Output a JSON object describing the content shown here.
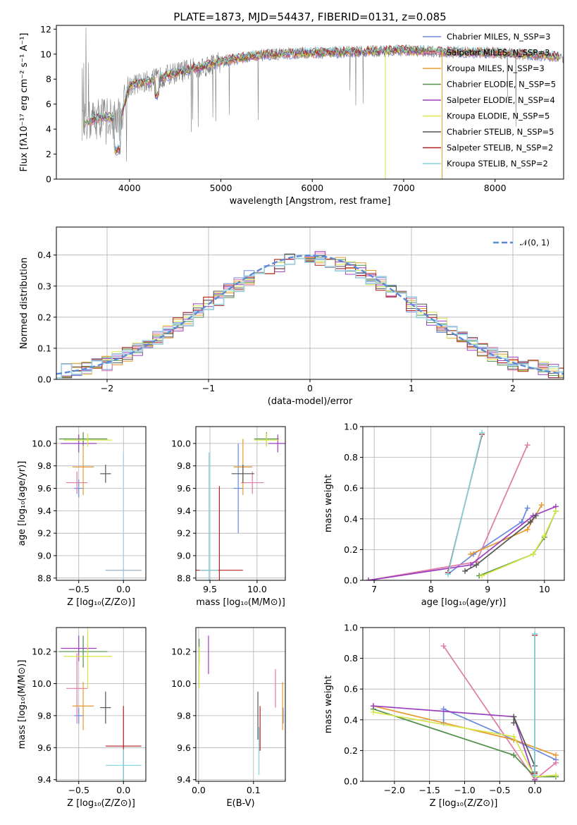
{
  "chart_data": [
    {
      "type": "line",
      "title": "PLATE=1873, MJD=54437, FIBERID=0131, z=0.085",
      "xlabel": "wavelength [Angstrom, rest frame]",
      "ylabel": "Flux [fλ10⁻¹⁷ erg cm⁻² s⁻¹ A⁻¹]",
      "xlim": [
        3200,
        8750
      ],
      "ylim": [
        0,
        12.3
      ],
      "xticks": [
        4000,
        5000,
        6000,
        7000,
        8000
      ],
      "yticks": [
        0,
        2,
        4,
        6,
        8,
        10,
        12
      ],
      "grid": false,
      "legend": "right",
      "spectrum_shape": {
        "x": [
          3500,
          3700,
          3900,
          4000,
          4200,
          4500,
          4800,
          5000,
          5300,
          5600,
          6000,
          6500,
          7000,
          7400,
          8000,
          8500,
          8700
        ],
        "y": [
          4.5,
          5.0,
          4.8,
          7.5,
          7.8,
          8.5,
          9.0,
          9.4,
          9.8,
          10.0,
          10.1,
          10.2,
          10.3,
          10.2,
          10.1,
          9.9,
          9.8
        ]
      },
      "series": [
        {
          "name": "Chabrier MILES, N_SSP=3",
          "color": "#6a88e0"
        },
        {
          "name": "Salpeter MILES, N_SSP=3",
          "color": "#e07aa8"
        },
        {
          "name": "Kroupa MILES, N_SSP=3",
          "color": "#e69a2e"
        },
        {
          "name": "Chabrier ELODIE, N_SSP=5",
          "color": "#4f8f47"
        },
        {
          "name": "Salpeter ELODIE, N_SSP=4",
          "color": "#9c3fbf"
        },
        {
          "name": "Kroupa ELODIE, N_SSP=5",
          "color": "#d8e64a"
        },
        {
          "name": "Chabrier STELIB, N_SSP=5",
          "color": "#555555"
        },
        {
          "name": "Salpeter STELIB, N_SSP=2",
          "color": "#b22222"
        },
        {
          "name": "Kroupa STELIB, N_SSP=2",
          "color": "#7fd6e0"
        }
      ]
    },
    {
      "type": "bar",
      "title": "",
      "xlabel": "(data-model)/error",
      "ylabel": "Normed distribution",
      "xlim": [
        -2.5,
        2.5
      ],
      "ylim": [
        0,
        0.49
      ],
      "xticks": [
        -2,
        -1,
        0,
        1,
        2
      ],
      "yticks": [
        0.0,
        0.1,
        0.2,
        0.3,
        0.4
      ],
      "grid": true,
      "legend": "top-right",
      "reference": {
        "name": "𝒩(0, 1)",
        "color": "#5b8bd6"
      },
      "histogram_envelope": {
        "x": [
          -2.5,
          -2.0,
          -1.5,
          -1.0,
          -0.5,
          0.0,
          0.5,
          1.0,
          1.5,
          2.0,
          2.5
        ],
        "y": [
          0.02,
          0.05,
          0.13,
          0.24,
          0.35,
          0.4,
          0.35,
          0.24,
          0.13,
          0.05,
          0.02
        ]
      }
    },
    {
      "type": "scatter",
      "xlabel": "Z [log₁₀(Z/Z⊙)]",
      "ylabel": "age  [log₁₀(age/yr)]",
      "xlim": [
        -0.75,
        0.25
      ],
      "ylim": [
        8.78,
        10.15
      ],
      "xticks": [
        -0.5,
        0.0
      ],
      "yticks": [
        8.8,
        9.0,
        9.2,
        9.4,
        9.6,
        9.8,
        10.0
      ],
      "grid": true,
      "points": [
        {
          "x": -0.5,
          "y": 9.6,
          "ex": 0.05,
          "ey": 0.08,
          "color": "#6a88e0"
        },
        {
          "x": -0.52,
          "y": 9.65,
          "ex": 0.12,
          "ey": 0.1,
          "color": "#e07aa8"
        },
        {
          "x": -0.45,
          "y": 9.79,
          "ex": 0.12,
          "ey": 0.25,
          "color": "#e69a2e"
        },
        {
          "x": -0.45,
          "y": 10.04,
          "ex": 0.27,
          "ey": 0.06,
          "color": "#4f8f47"
        },
        {
          "x": -0.5,
          "y": 10.0,
          "ex": 0.2,
          "ey": 0.08,
          "color": "#9c3fbf"
        },
        {
          "x": -0.4,
          "y": 10.03,
          "ex": 0.27,
          "ey": 0.06,
          "color": "#d8e64a"
        },
        {
          "x": -0.2,
          "y": 9.73,
          "ex": 0.06,
          "ey": 0.08,
          "color": "#555555"
        },
        {
          "x": 0.0,
          "y": 8.87,
          "ex": 0.2,
          "ey": 0.01,
          "color": "#b22222"
        },
        {
          "x": 0.0,
          "y": 8.87,
          "ex": 0.2,
          "ey": 1.05,
          "color": "#9fcfe0"
        }
      ]
    },
    {
      "type": "scatter",
      "xlabel": "mass [log₁₀(M/M⊙)]",
      "ylabel": "",
      "xlim": [
        9.35,
        10.3
      ],
      "ylim": [
        8.78,
        10.15
      ],
      "xticks": [
        9.5,
        10.0
      ],
      "yticks": [
        8.8,
        9.0,
        9.2,
        9.4,
        9.6,
        9.8,
        10.0
      ],
      "grid": true,
      "points": [
        {
          "x": 9.8,
          "y": 9.6,
          "ex": 0.05,
          "ey": 0.4,
          "color": "#6a88e0"
        },
        {
          "x": 9.95,
          "y": 9.65,
          "ex": 0.12,
          "ey": 0.1,
          "color": "#e07aa8"
        },
        {
          "x": 9.85,
          "y": 9.79,
          "ex": 0.1,
          "ey": 0.25,
          "color": "#e69a2e"
        },
        {
          "x": 10.1,
          "y": 10.04,
          "ex": 0.13,
          "ey": 0.06,
          "color": "#4f8f47"
        },
        {
          "x": 10.22,
          "y": 10.0,
          "ex": 0.1,
          "ey": 0.08,
          "color": "#9c3fbf"
        },
        {
          "x": 10.1,
          "y": 10.03,
          "ex": 0.13,
          "ey": 0.06,
          "color": "#d8e64a"
        },
        {
          "x": 9.85,
          "y": 9.73,
          "ex": 0.12,
          "ey": 0.08,
          "color": "#555555"
        },
        {
          "x": 9.6,
          "y": 8.87,
          "ex": 0.25,
          "ey": 0.75,
          "color": "#b22222"
        },
        {
          "x": 9.49,
          "y": 8.87,
          "ex": 0.1,
          "ey": 1.05,
          "color": "#7fd6e0"
        }
      ]
    },
    {
      "type": "line",
      "xlabel": "age  [log₁₀(age/yr)]",
      "ylabel": "mass weight",
      "xlim": [
        6.8,
        10.35
      ],
      "ylim": [
        0,
        1.0
      ],
      "xticks": [
        7,
        8,
        9,
        10
      ],
      "yticks": [
        0.0,
        0.2,
        0.4,
        0.6,
        0.8,
        1.0
      ],
      "grid": true,
      "series": [
        {
          "color": "#6a88e0",
          "x": [
            8.3,
            8.75,
            9.6,
            9.7
          ],
          "y": [
            0.04,
            0.17,
            0.38,
            0.47
          ]
        },
        {
          "color": "#e07aa8",
          "x": [
            6.9,
            8.8,
            9.7
          ],
          "y": [
            0.0,
            0.12,
            0.88
          ]
        },
        {
          "color": "#e69a2e",
          "x": [
            8.7,
            9.7,
            9.95
          ],
          "y": [
            0.17,
            0.33,
            0.49
          ]
        },
        {
          "color": "#4f8f47",
          "x": [
            8.85,
            9.8,
            10.0,
            10.2
          ],
          "y": [
            0.03,
            0.17,
            0.28,
            0.45
          ]
        },
        {
          "color": "#9c3fbf",
          "x": [
            6.9,
            8.7,
            9.8,
            10.2
          ],
          "y": [
            0.0,
            0.1,
            0.42,
            0.48
          ]
        },
        {
          "color": "#d8e64a",
          "x": [
            8.9,
            9.8,
            10.0,
            10.2
          ],
          "y": [
            0.03,
            0.17,
            0.29,
            0.45
          ]
        },
        {
          "color": "#555555",
          "x": [
            8.6,
            8.8,
            9.75,
            9.85
          ],
          "y": [
            0.06,
            0.1,
            0.38,
            0.42
          ]
        },
        {
          "color": "#b22222",
          "x": [
            8.3,
            8.9
          ],
          "y": [
            0.05,
            0.95
          ]
        },
        {
          "color": "#7fd6e0",
          "x": [
            8.3,
            8.9
          ],
          "y": [
            0.04,
            0.96
          ]
        }
      ]
    },
    {
      "type": "scatter",
      "xlabel": "Z [log₁₀(Z/Z⊙)]",
      "ylabel": "mass [log₁₀(M/M⊙)]",
      "xlim": [
        -0.75,
        0.25
      ],
      "ylim": [
        9.39,
        10.35
      ],
      "xticks": [
        -0.5,
        0.0
      ],
      "yticks": [
        9.4,
        9.6,
        9.8,
        10.0,
        10.2
      ],
      "grid": true,
      "points": [
        {
          "x": -0.5,
          "y": 9.8,
          "ex": 0.05,
          "ey": 0.05,
          "color": "#6a88e0"
        },
        {
          "x": -0.52,
          "y": 9.97,
          "ex": 0.12,
          "ey": 0.22,
          "color": "#e07aa8"
        },
        {
          "x": -0.45,
          "y": 9.86,
          "ex": 0.12,
          "ey": 0.15,
          "color": "#e69a2e"
        },
        {
          "x": -0.45,
          "y": 10.2,
          "ex": 0.27,
          "ey": 0.1,
          "color": "#4f8f47"
        },
        {
          "x": -0.5,
          "y": 10.22,
          "ex": 0.2,
          "ey": 0.08,
          "color": "#9c3fbf"
        },
        {
          "x": -0.4,
          "y": 10.17,
          "ex": 0.27,
          "ey": 0.2,
          "color": "#d8e64a"
        },
        {
          "x": -0.2,
          "y": 9.85,
          "ex": 0.06,
          "ey": 0.1,
          "color": "#555555"
        },
        {
          "x": 0.0,
          "y": 9.61,
          "ex": 0.2,
          "ey": 0.25,
          "color": "#b22222"
        },
        {
          "x": 0.0,
          "y": 9.49,
          "ex": 0.2,
          "ey": 0.1,
          "color": "#7fd6e0"
        }
      ]
    },
    {
      "type": "scatter",
      "xlabel": "E(B-V)",
      "ylabel": "",
      "xlim": [
        -0.005,
        0.158
      ],
      "ylim": [
        9.39,
        10.35
      ],
      "xticks": [
        0.0,
        0.1
      ],
      "yticks": [
        9.4,
        9.6,
        9.8,
        10.0,
        10.2
      ],
      "grid": true,
      "points": [
        {
          "x": 0.154,
          "y": 9.8,
          "ex": 0,
          "ey": 0.05,
          "color": "#6a88e0"
        },
        {
          "x": 0.14,
          "y": 9.97,
          "ex": 0,
          "ey": 0.12,
          "color": "#e07aa8"
        },
        {
          "x": 0.153,
          "y": 9.86,
          "ex": 0,
          "ey": 0.15,
          "color": "#e69a2e"
        },
        {
          "x": 0.001,
          "y": 10.2,
          "ex": 0,
          "ey": 0.08,
          "color": "#4f8f47"
        },
        {
          "x": 0.018,
          "y": 10.18,
          "ex": 0,
          "ey": 0.12,
          "color": "#9c3fbf"
        },
        {
          "x": 0.001,
          "y": 10.1,
          "ex": 0,
          "ey": 0.13,
          "color": "#d8e64a"
        },
        {
          "x": 0.108,
          "y": 9.8,
          "ex": 0,
          "ey": 0.15,
          "color": "#555555"
        },
        {
          "x": 0.112,
          "y": 9.72,
          "ex": 0,
          "ey": 0.14,
          "color": "#b22222"
        },
        {
          "x": 0.11,
          "y": 9.58,
          "ex": 0,
          "ey": 0.15,
          "color": "#7fd6e0"
        }
      ]
    },
    {
      "type": "line",
      "xlabel": "Z [log₁₀(Z/Z⊙)]",
      "ylabel": "mass weight",
      "xlim": [
        -2.45,
        0.42
      ],
      "ylim": [
        0,
        1.0
      ],
      "xticks": [
        -2.0,
        -1.5,
        -1.0,
        -0.5,
        0.0
      ],
      "yticks": [
        0.0,
        0.2,
        0.4,
        0.6,
        0.8,
        1.0
      ],
      "grid": true,
      "series": [
        {
          "color": "#6a88e0",
          "x": [
            -1.3,
            -1.3,
            -0.3,
            0.3
          ],
          "y": [
            0.38,
            0.47,
            0.27,
            0.14
          ]
        },
        {
          "color": "#e07aa8",
          "x": [
            -1.3,
            0.0,
            0.3
          ],
          "y": [
            0.88,
            0.01,
            0.12
          ]
        },
        {
          "color": "#e69a2e",
          "x": [
            -2.3,
            -0.3,
            0.3
          ],
          "y": [
            0.49,
            0.27,
            0.17
          ]
        },
        {
          "color": "#4f8f47",
          "x": [
            -2.3,
            -0.3,
            0.0,
            0.3
          ],
          "y": [
            0.47,
            0.17,
            0.03,
            0.03
          ]
        },
        {
          "color": "#9c3fbf",
          "x": [
            -2.3,
            -0.3,
            0.0
          ],
          "y": [
            0.49,
            0.42,
            0.01
          ]
        },
        {
          "color": "#d8e64a",
          "x": [
            -2.3,
            -0.3,
            0.0,
            0.3
          ],
          "y": [
            0.45,
            0.29,
            0.03,
            0.04
          ]
        },
        {
          "color": "#555555",
          "x": [
            -0.3,
            -0.3,
            0.0,
            0.0
          ],
          "y": [
            0.38,
            0.42,
            0.1,
            0.06
          ]
        },
        {
          "color": "#b22222",
          "x": [
            0.0,
            0.0
          ],
          "y": [
            0.05,
            0.95
          ]
        },
        {
          "color": "#7fd6e0",
          "x": [
            0.0,
            0.0
          ],
          "y": [
            0.04,
            0.96
          ]
        }
      ]
    }
  ]
}
